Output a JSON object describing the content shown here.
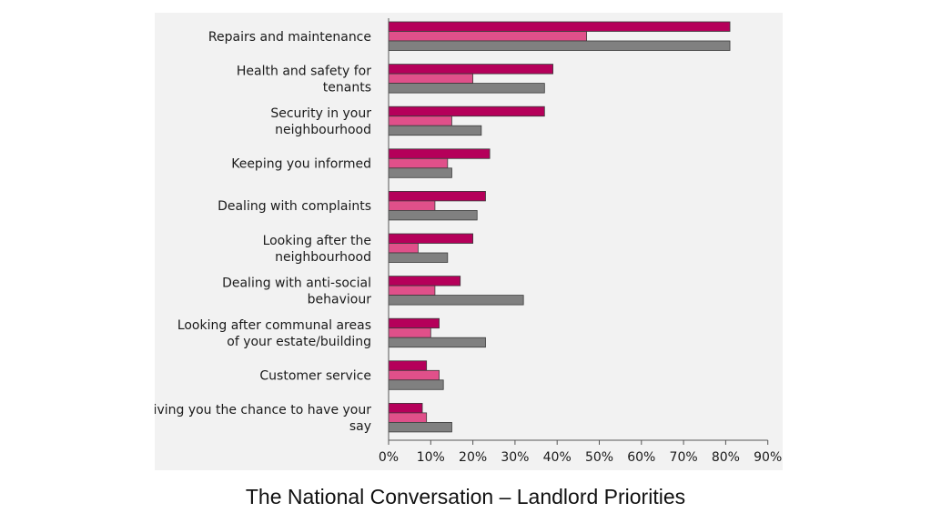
{
  "caption": "The National Conversation – Landlord Priorities",
  "chart_data": {
    "type": "bar",
    "orientation": "horizontal",
    "categories": [
      [
        "Repairs and maintenance"
      ],
      [
        "Health and safety for",
        "tenants"
      ],
      [
        "Security in your",
        "neighbourhood"
      ],
      [
        "Keeping you informed"
      ],
      [
        "Dealing with complaints"
      ],
      [
        "Looking after the",
        "neighbourhood"
      ],
      [
        "Dealing with anti-social",
        "behaviour"
      ],
      [
        "Looking after communal areas",
        "of your estate/building"
      ],
      [
        "Customer service"
      ],
      [
        "Giving you the chance to have your",
        "say"
      ]
    ],
    "series": [
      {
        "color": "#b5005a",
        "values": [
          81,
          39,
          37,
          24,
          23,
          20,
          17,
          12,
          9,
          8
        ]
      },
      {
        "color": "#e0508a",
        "values": [
          47,
          20,
          15,
          14,
          11,
          7,
          11,
          10,
          12,
          9
        ]
      },
      {
        "color": "#808080",
        "values": [
          81,
          37,
          22,
          15,
          21,
          14,
          32,
          23,
          13,
          15
        ]
      }
    ],
    "xlim": [
      0,
      90
    ],
    "xticks": [
      "0%",
      "10%",
      "20%",
      "30%",
      "40%",
      "50%",
      "60%",
      "70%",
      "80%",
      "90%"
    ],
    "grid": false
  }
}
